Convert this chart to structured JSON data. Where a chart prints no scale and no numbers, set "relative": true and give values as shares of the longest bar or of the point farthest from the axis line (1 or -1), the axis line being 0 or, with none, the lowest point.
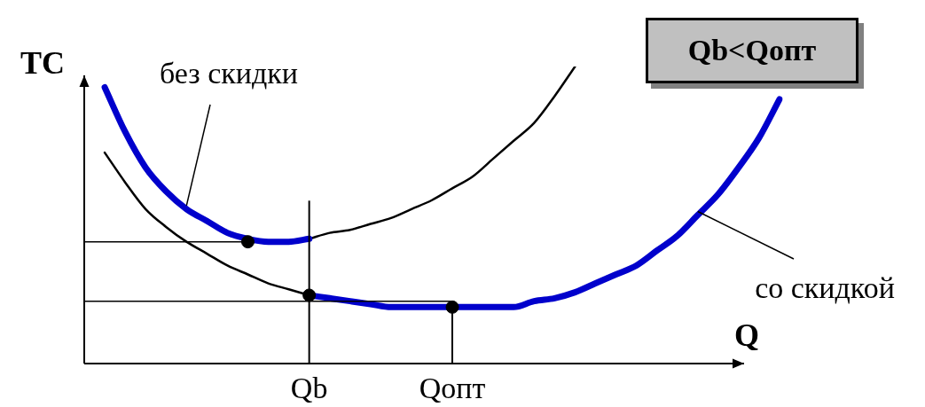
{
  "chart_data": {
    "type": "line",
    "relative": true,
    "xlabel": "Q",
    "ylabel": "TC",
    "legend": false,
    "marker": "none",
    "line_style": "solid",
    "categories": [
      null,
      null,
      null,
      null,
      null,
      null,
      null,
      null,
      null,
      null,
      null,
      "Qb",
      null,
      null,
      null,
      null,
      null,
      null,
      "Qопт",
      null,
      null,
      null,
      null,
      null,
      null,
      null,
      null,
      null,
      null,
      null,
      null,
      null,
      null,
      null,
      null
    ],
    "series": [
      {
        "name": "без скидки",
        "color": "#0000cc",
        "values": [
          null,
          0.93,
          0.78,
          0.66,
          0.58,
          0.52,
          0.48,
          0.44,
          0.42,
          0.41,
          0.41,
          0.42,
          null,
          null,
          null,
          null,
          null,
          null,
          null,
          null,
          null,
          null,
          null,
          null,
          null,
          null,
          null,
          null,
          null,
          null,
          null,
          null,
          null,
          null,
          null
        ]
      },
      {
        "color": "#000000",
        "values": [
          null,
          null,
          null,
          null,
          null,
          null,
          null,
          null,
          null,
          null,
          null,
          0.42,
          0.44,
          0.45,
          0.47,
          0.49,
          0.52,
          0.55,
          0.59,
          0.63,
          0.69,
          0.75,
          0.81,
          0.9,
          1.0,
          null,
          null,
          null,
          null,
          null,
          null,
          null,
          null,
          null,
          null
        ]
      },
      {
        "color": "#000000",
        "values": [
          null,
          0.71,
          0.61,
          0.52,
          0.46,
          0.41,
          0.37,
          0.33,
          0.3,
          0.27,
          0.25,
          0.23,
          null,
          null,
          null,
          null,
          null,
          null,
          null,
          null,
          null,
          null,
          null,
          null,
          null,
          null,
          null,
          null,
          null,
          null,
          null,
          null,
          null,
          null,
          null
        ]
      },
      {
        "name": "со скидкой",
        "color": "#0000cc",
        "values": [
          null,
          null,
          null,
          null,
          null,
          null,
          null,
          null,
          null,
          null,
          null,
          0.23,
          0.22,
          0.21,
          0.2,
          0.19,
          0.19,
          0.19,
          0.19,
          0.19,
          0.19,
          0.19,
          0.21,
          0.22,
          0.24,
          0.27,
          0.3,
          0.33,
          0.38,
          0.43,
          0.5,
          0.57,
          0.66,
          0.76,
          0.89
        ]
      },
      {
        "color": "#000000",
        "values": [
          0.41,
          0.41,
          0.41,
          0.41,
          0.41,
          0.41,
          0.41,
          0.41,
          0.41,
          null,
          null,
          null,
          null,
          null,
          null,
          null,
          null,
          null,
          null,
          null,
          null,
          null,
          null,
          null,
          null,
          null,
          null,
          null,
          null,
          null,
          null,
          null,
          null,
          null,
          null
        ]
      },
      {
        "color": "#000000",
        "values": [
          0.21,
          0.21,
          0.21,
          0.21,
          0.21,
          0.21,
          0.21,
          0.21,
          0.21,
          0.21,
          0.21,
          0.21,
          0.21,
          0.21,
          0.21,
          0.21,
          0.21,
          0.21,
          0.21,
          null,
          null,
          null,
          null,
          null,
          null,
          null,
          null,
          null,
          null,
          null,
          null,
          null,
          null,
          null,
          null
        ]
      },
      {
        "type": "scatter",
        "marker": "circle",
        "color": "#000000",
        "values": [
          null,
          null,
          null,
          null,
          null,
          null,
          null,
          null,
          0.41,
          null,
          null,
          0.23,
          null,
          null,
          null,
          null,
          null,
          null,
          0.19,
          null,
          null,
          null,
          null,
          null,
          null,
          null,
          null,
          null,
          null,
          null,
          null,
          null,
          null,
          null,
          null
        ]
      }
    ],
    "ref_lines": [
      {
        "axis": "x",
        "value": "Qb"
      }
    ],
    "annotations": [
      "Qb<Qопт"
    ]
  }
}
